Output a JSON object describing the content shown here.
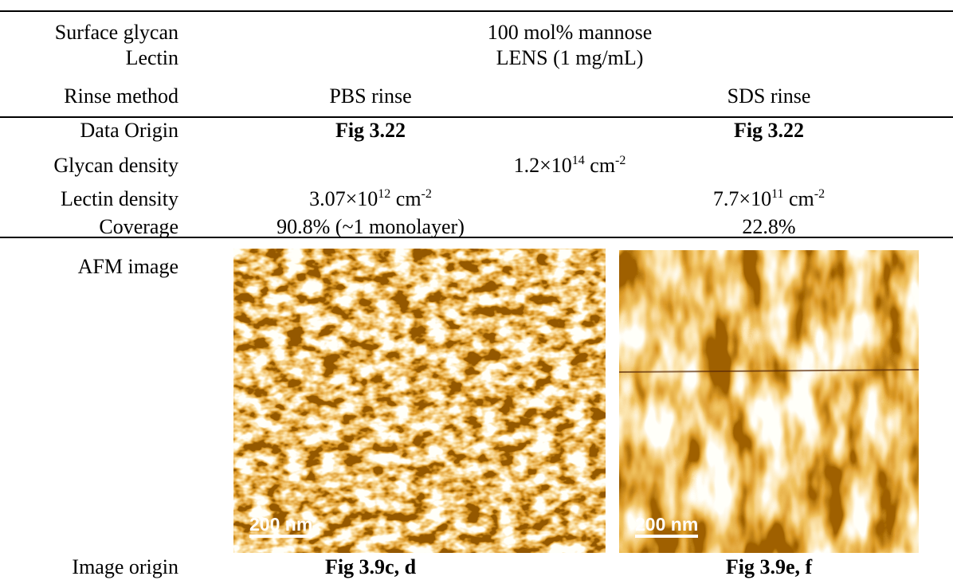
{
  "table": {
    "rows": [
      {
        "label": "Surface glycan",
        "span": "100 mol% mannose"
      },
      {
        "label": "Lectin",
        "span": "LENS (1 mg/mL)"
      },
      {
        "label": "Rinse method",
        "left": "PBS rinse",
        "right": "SDS rinse"
      },
      {
        "label": "Data Origin",
        "left": "Fig 3.22",
        "right": "Fig 3.22"
      },
      {
        "label": "Glycan density",
        "span": {
          "mantissa": "1.2×10",
          "exponent": "14",
          "unit": "cm",
          "unit_exponent": "-2"
        }
      },
      {
        "label": "Lectin density",
        "left": {
          "mantissa": "3.07×10",
          "exponent": "12",
          "unit": "cm",
          "unit_exponent": "-2"
        },
        "right": {
          "mantissa": "7.7×10",
          "exponent": "11",
          "unit": "cm",
          "unit_exponent": "-2"
        }
      },
      {
        "label": "Coverage",
        "left": "90.8% (~1 monolayer)",
        "right": "22.8%"
      },
      {
        "label": "AFM image",
        "left": {
          "scale_bar": "200 nm"
        },
        "right": {
          "scale_bar": "200 nm"
        }
      },
      {
        "label": "Image origin",
        "left": "Fig 3.9c, d",
        "right": "Fig 3.9e, f"
      }
    ]
  }
}
